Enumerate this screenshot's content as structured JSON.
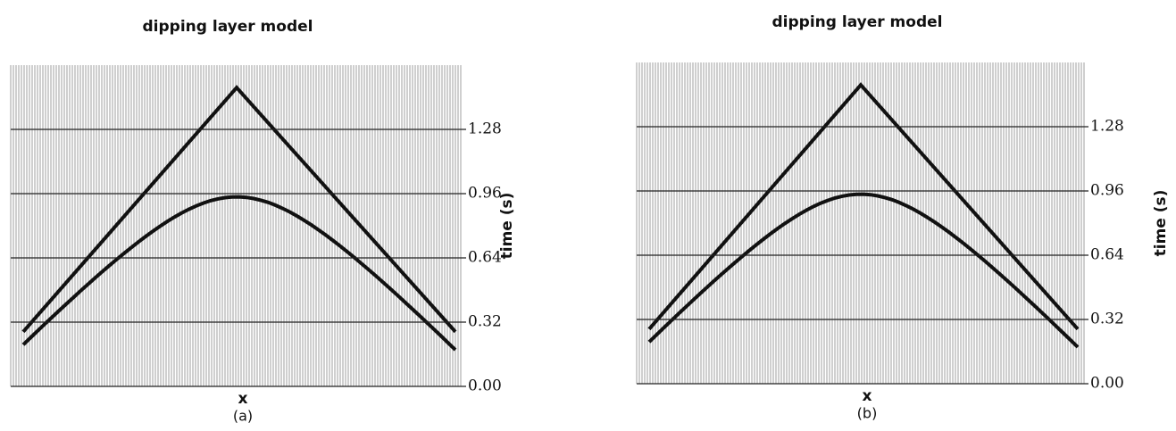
{
  "chart_data": [
    {
      "type": "seismic",
      "title": "dipping layer model",
      "xlabel": "x",
      "ylabel": "time (s)",
      "caption": "(a)",
      "ylim": [
        0,
        1.6
      ],
      "yticks": [
        {
          "value": 0,
          "label": "0.00"
        },
        0.32,
        0.64,
        0.96,
        1.28
      ],
      "grid": true
    },
    {
      "type": "seismic",
      "title": "dipping layer model",
      "xlabel": "x",
      "ylabel": "time (s)",
      "caption": "(b)",
      "ylim": [
        0,
        1.6
      ],
      "yticks": [
        {
          "value": 0,
          "label": "0.00"
        },
        0.32,
        0.64,
        0.96,
        1.28
      ],
      "grid": true
    }
  ]
}
